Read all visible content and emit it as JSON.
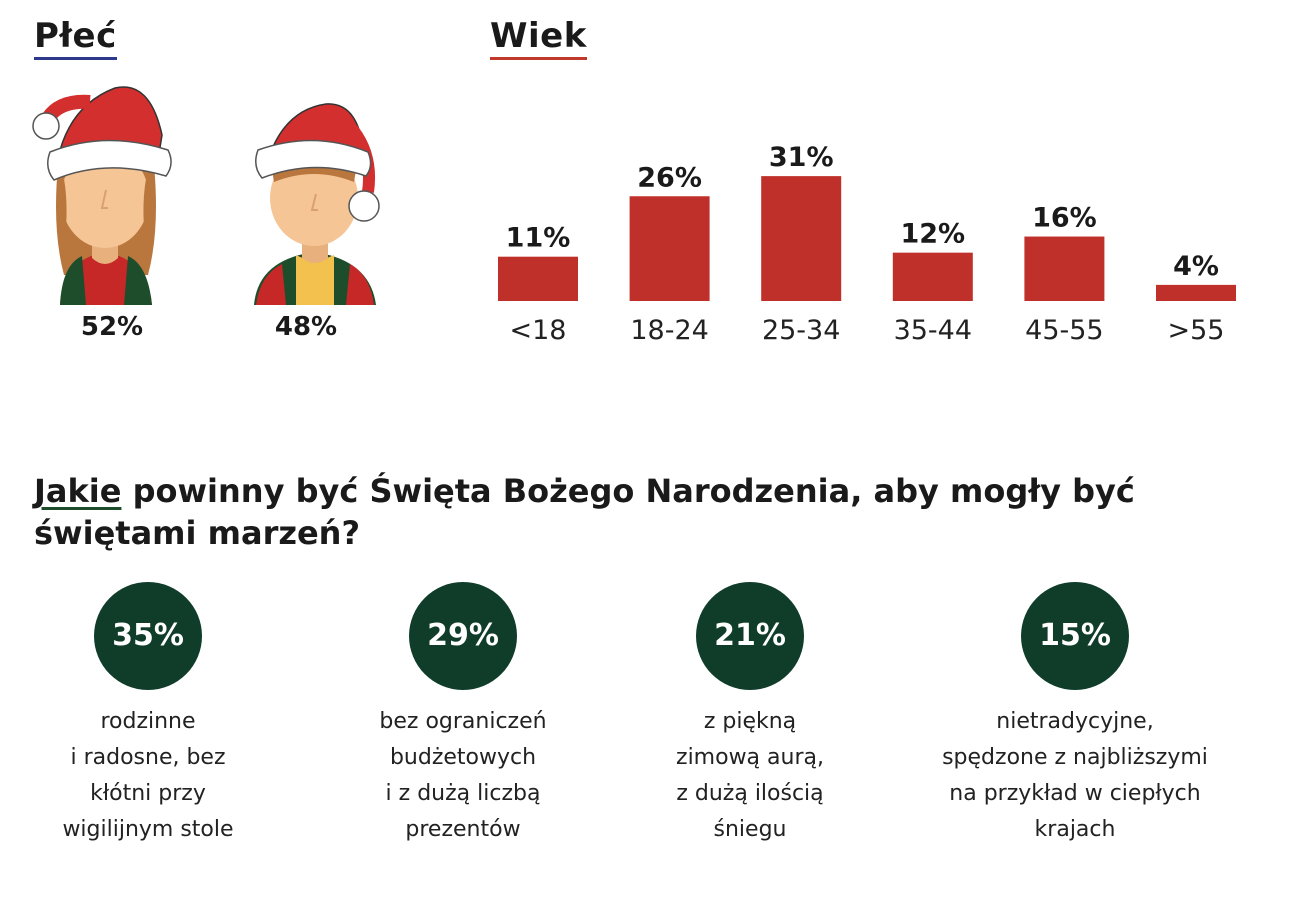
{
  "gender": {
    "title": "Płeć",
    "female_pct": "52%",
    "male_pct": "48%"
  },
  "age": {
    "title": "Wiek"
  },
  "chart_data": {
    "type": "bar",
    "title": "Wiek",
    "categories": [
      "<18",
      "18-24",
      "25-34",
      "35-44",
      "45-55",
      ">55"
    ],
    "values": [
      11,
      26,
      31,
      12,
      16,
      4
    ],
    "labels": [
      "11%",
      "26%",
      "31%",
      "12%",
      "16%",
      "4%"
    ],
    "xlabel": "",
    "ylabel": "",
    "ylim": [
      0,
      35
    ],
    "bar_color": "#c0302a"
  },
  "question": {
    "first_word": "Jakie",
    "rest": " powinny być Święta Bożego Narodzenia, aby mogły być świętami marzeń?"
  },
  "answers": [
    {
      "pct": "35%",
      "text": "rodzinne\ni radosne, bez\nkłótni przy\nwigilijnym stole"
    },
    {
      "pct": "29%",
      "text": "bez ograniczeń\nbudżetowych\ni z dużą liczbą\nprezentów"
    },
    {
      "pct": "21%",
      "text": "z piękną\nzimową aurą,\nz dużą ilością\nśniegu"
    },
    {
      "pct": "15%",
      "text": "nietradycyjne,\nspędzone z najbliższymi\nna przykład w ciepłych\nkrajach"
    }
  ],
  "colors": {
    "bar": "#c0302a",
    "circle": "#0f3d2a",
    "hat": "#d32f2f"
  }
}
